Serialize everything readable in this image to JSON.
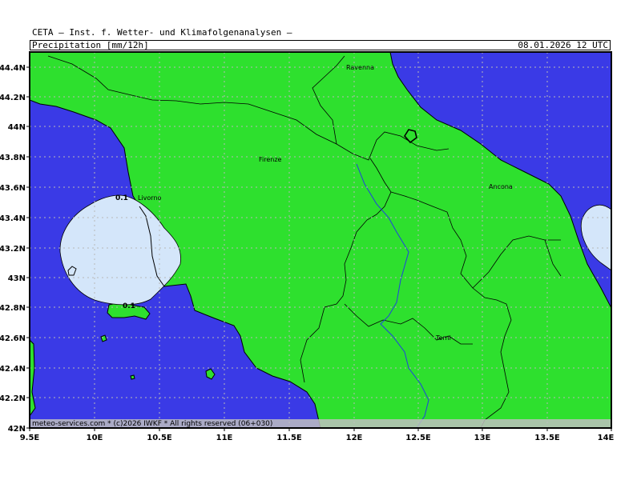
{
  "header": {
    "institute": "CETA — Inst. f. Wetter- und Klimafolgenanalysen —",
    "product": "Precipitation_[mm/12h]",
    "valid_time": "08.01.2026  12 UTC"
  },
  "map": {
    "lat_ticks": [
      "44.4N",
      "44.2N",
      "44N",
      "43.8N",
      "43.6N",
      "43.4N",
      "43.2N",
      "43N",
      "42.8N",
      "42.6N",
      "42.4N",
      "42.2N",
      "42N"
    ],
    "lon_ticks": [
      "9.5E",
      "10E",
      "10.5E",
      "11E",
      "11.5E",
      "12E",
      "12.5E",
      "13E",
      "13.5E",
      "14E"
    ],
    "cities": {
      "ravenna": "Ravenna",
      "firenze": "Firenze",
      "livorno": "Livorno",
      "ancona": "Ancona",
      "terni": "Terni"
    },
    "contour_labels": {
      "upper": "0.1",
      "lower": "0.1"
    },
    "footer": "meteo-services.com * (c)2026 IWKF * All rights reserved (06+030)",
    "colors": {
      "sea": "#3a3ae6",
      "land": "#2ee02e",
      "precip_light": "#d4e6fa",
      "grid": "#b8b8b8",
      "footer_band": "#bfc0bf"
    }
  }
}
